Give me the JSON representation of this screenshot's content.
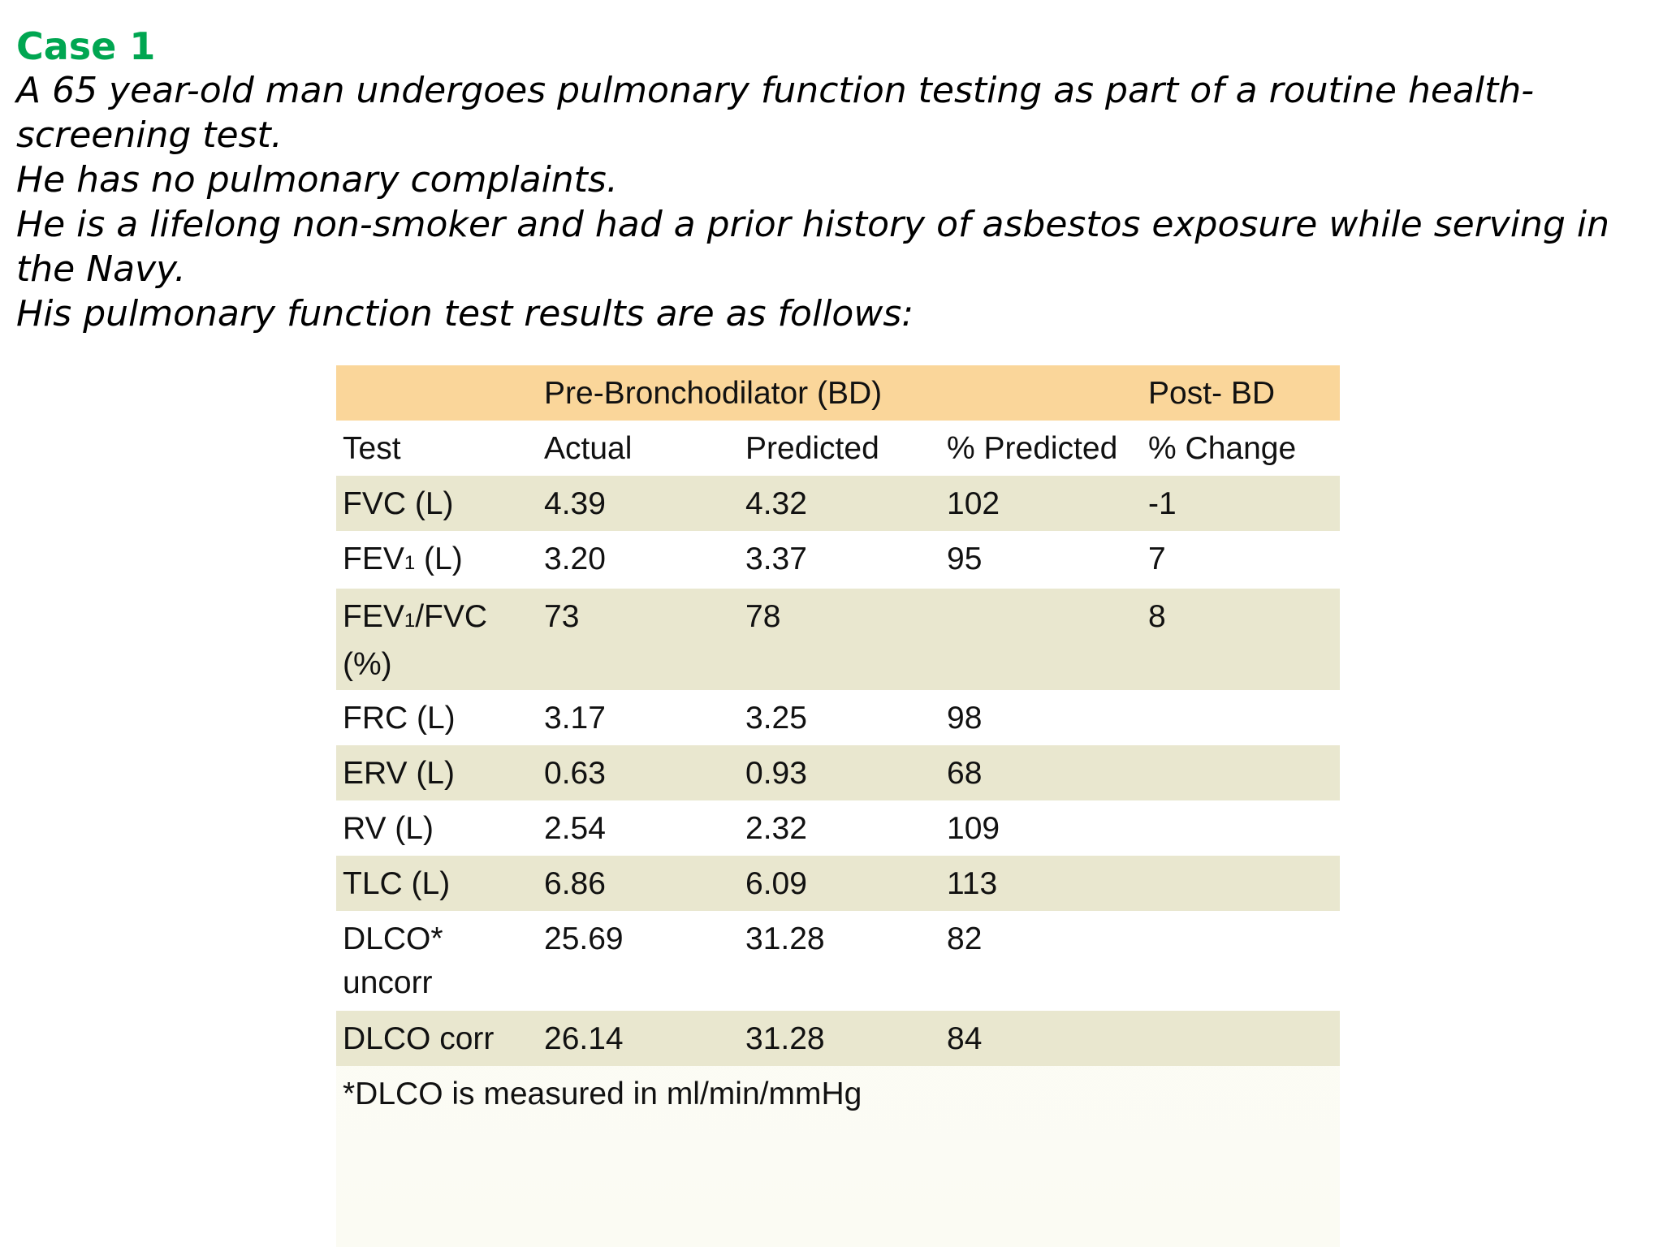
{
  "slide": {
    "heading": "Case 1",
    "paragraphs": [
      "A 65 year-old man undergoes pulmonary function testing as part of a routine health-screening test.",
      "He has no pulmonary complaints.",
      "He is a lifelong non-smoker and had a prior history of asbestos exposure while serving in the Navy.",
      "His pulmonary function test results are as follows:"
    ]
  },
  "table": {
    "group_headers": {
      "pre": "Pre-Bronchodilator (BD)",
      "post": "Post- BD"
    },
    "columns": [
      "Test",
      "Actual",
      "Predicted",
      "% Predicted",
      "% Change"
    ],
    "rows": [
      {
        "test": "FVC (L)",
        "actual": "4.39",
        "predicted": "4.32",
        "pct_predicted": "102",
        "pct_change": "-1"
      },
      {
        "test_pre": "FEV",
        "test_sub": "1",
        "test_post": " (L)",
        "actual": "3.20",
        "predicted": "3.37",
        "pct_predicted": "95",
        "pct_change": "7"
      },
      {
        "test_pre": "FEV",
        "test_sub": "1",
        "test_post": "/FVC (%)",
        "actual": "73",
        "predicted": "78",
        "pct_predicted": "",
        "pct_change": "8"
      },
      {
        "test": "FRC (L)",
        "actual": "3.17",
        "predicted": "3.25",
        "pct_predicted": "98",
        "pct_change": ""
      },
      {
        "test": "ERV (L)",
        "actual": "0.63",
        "predicted": "0.93",
        "pct_predicted": "68",
        "pct_change": ""
      },
      {
        "test": "RV (L)",
        "actual": "2.54",
        "predicted": "2.32",
        "pct_predicted": "109",
        "pct_change": ""
      },
      {
        "test": "TLC (L)",
        "actual": "6.86",
        "predicted": "6.09",
        "pct_predicted": "113",
        "pct_change": ""
      },
      {
        "test": "DLCO* uncorr",
        "actual": "25.69",
        "predicted": "31.28",
        "pct_predicted": "82",
        "pct_change": ""
      },
      {
        "test": "DLCO corr",
        "actual": "26.14",
        "predicted": "31.28",
        "pct_predicted": "84",
        "pct_change": ""
      }
    ],
    "footnote": "*DLCO is measured in ml/min/mmHg"
  },
  "colors": {
    "heading": "#00a651",
    "header_row": "#fad69a",
    "shaded_row": "#e9e7cf"
  }
}
